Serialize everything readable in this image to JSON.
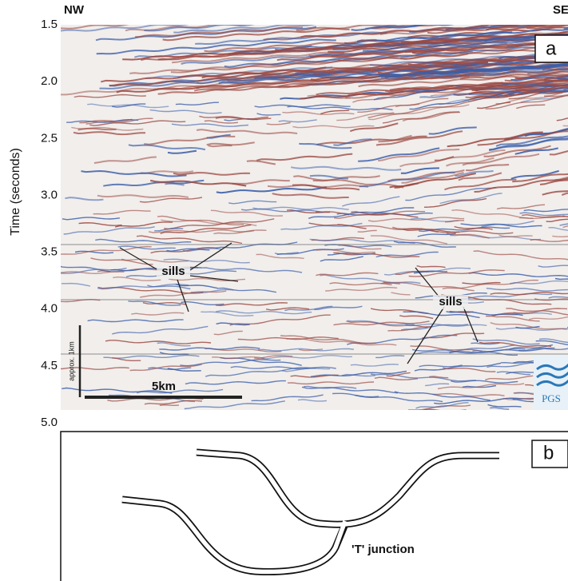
{
  "header": {
    "left": "NW",
    "right": "SE"
  },
  "axis": {
    "label": "Time (seconds)",
    "ticks": [
      {
        "value": 1.5,
        "label": "1.5"
      },
      {
        "value": 2.0,
        "label": "2.0"
      },
      {
        "value": 2.5,
        "label": "2.5"
      },
      {
        "value": 3.0,
        "label": "3.0"
      },
      {
        "value": 3.5,
        "label": "3.5"
      },
      {
        "value": 4.0,
        "label": "4.0"
      },
      {
        "value": 4.5,
        "label": "4.5"
      },
      {
        "value": 5.0,
        "label": "5.0"
      }
    ]
  },
  "panel_a": {
    "label": "a",
    "annotations": [
      "sills",
      "sills"
    ],
    "scale_horizontal": "5km",
    "scale_vertical": "approx. 1km",
    "logo": "PGS"
  },
  "panel_b": {
    "label": "b",
    "annotation": "'T'  junction"
  }
}
